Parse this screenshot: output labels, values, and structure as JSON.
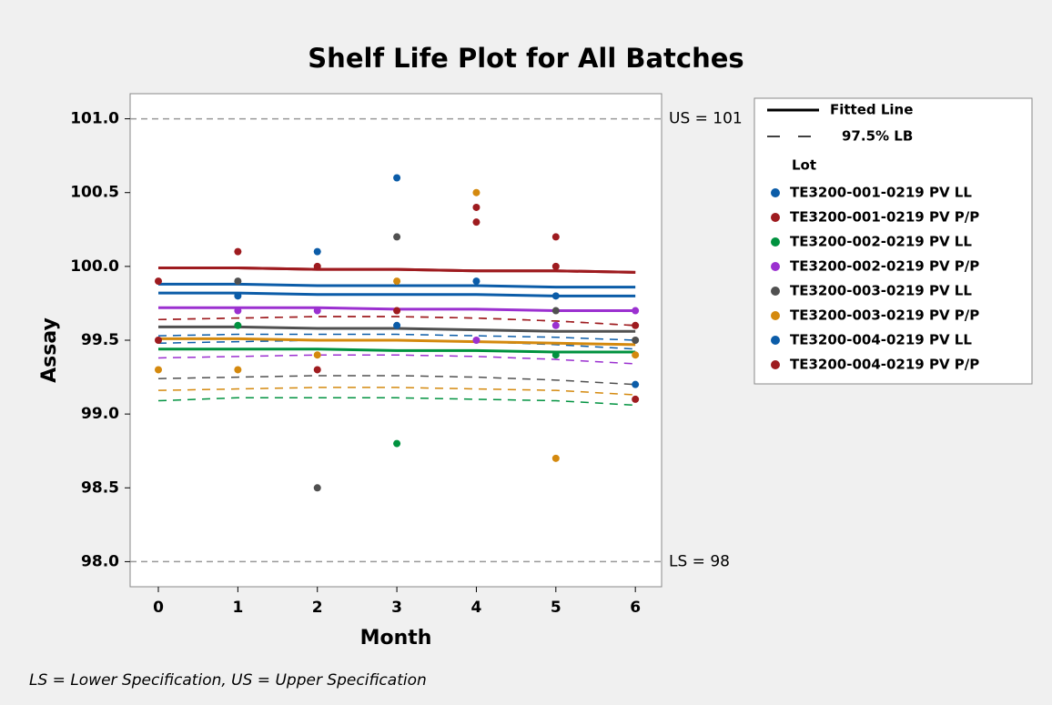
{
  "chart_data": {
    "type": "scatter",
    "title": "Shelf Life Plot for All Batches",
    "x_label": "Month",
    "y_label": "Assay",
    "xlim": [
      -0.355,
      6.33
    ],
    "ylim": [
      97.83,
      101.17
    ],
    "xticks": [
      0,
      1,
      2,
      3,
      4,
      5,
      6
    ],
    "yticks": [
      {
        "value": 98,
        "label": "98.0"
      },
      98.5,
      {
        "value": 99,
        "label": "99.0"
      },
      99.5,
      {
        "value": 100,
        "label": "100.0"
      },
      100.5,
      {
        "value": 101,
        "label": "101.0"
      }
    ],
    "reference_lines": [
      {
        "value": 101,
        "label": "US = 101"
      },
      {
        "value": 98,
        "label": "LS = 98"
      }
    ],
    "legend": {
      "fitted": "Fitted Line",
      "lb": "97.5% LB",
      "group_title": "Lot"
    },
    "footnote": "LS = Lower Specification, US = Upper Specification",
    "series": [
      {
        "name": "TE3200-001-0219 PV LL",
        "color": "#0b5ca8",
        "x": [
          2,
          3,
          4,
          5,
          6
        ],
        "y": [
          100.1,
          100.6,
          99.9,
          99.8,
          99.2
        ],
        "fitted": [
          99.88,
          99.88,
          99.87,
          99.87,
          99.87,
          99.86,
          99.86
        ],
        "lb": [
          99.53,
          99.54,
          99.54,
          99.54,
          99.53,
          99.52,
          99.5
        ]
      },
      {
        "name": "TE3200-001-0219 PV P/P",
        "color": "#9e1b1f",
        "x": [
          0,
          1,
          2,
          4,
          5,
          6
        ],
        "y": [
          99.9,
          100.1,
          100.0,
          100.4,
          100.2,
          99.6
        ],
        "fitted": [
          99.99,
          99.99,
          99.98,
          99.98,
          99.97,
          99.97,
          99.96
        ],
        "lb": [
          99.64,
          99.65,
          99.66,
          99.66,
          99.65,
          99.63,
          99.6
        ]
      },
      {
        "name": "TE3200-002-0219 PV LL",
        "color": "#00923f",
        "x": [
          1,
          3,
          5
        ],
        "y": [
          99.6,
          98.8,
          99.4
        ],
        "fitted": [
          99.44,
          99.44,
          99.44,
          99.43,
          99.43,
          99.42,
          99.42
        ],
        "lb": [
          99.09,
          99.11,
          99.11,
          99.11,
          99.1,
          99.09,
          99.06
        ]
      },
      {
        "name": "TE3200-002-0219 PV P/P",
        "color": "#9b30d0",
        "x": [
          1,
          2,
          4,
          5,
          6
        ],
        "y": [
          99.7,
          99.7,
          99.5,
          99.6,
          99.7
        ],
        "fitted": [
          99.72,
          99.72,
          99.72,
          99.71,
          99.71,
          99.7,
          99.7
        ],
        "lb": [
          99.38,
          99.39,
          99.4,
          99.4,
          99.39,
          99.37,
          99.34
        ]
      },
      {
        "name": "TE3200-003-0219 PV LL",
        "color": "#505050",
        "x": [
          1,
          2,
          3,
          5,
          6
        ],
        "y": [
          99.9,
          98.5,
          100.2,
          99.7,
          99.5
        ],
        "fitted": [
          99.59,
          99.59,
          99.58,
          99.58,
          99.57,
          99.56,
          99.56
        ],
        "lb": [
          99.24,
          99.25,
          99.26,
          99.26,
          99.25,
          99.23,
          99.2
        ]
      },
      {
        "name": "TE3200-003-0219 PV P/P",
        "color": "#d4890e",
        "x": [
          0,
          1,
          2,
          3,
          4,
          5,
          6
        ],
        "y": [
          99.3,
          99.3,
          99.4,
          99.9,
          100.5,
          98.7,
          99.4
        ],
        "fitted": [
          99.51,
          99.51,
          99.5,
          99.5,
          99.49,
          99.48,
          99.47
        ],
        "lb": [
          99.16,
          99.17,
          99.18,
          99.18,
          99.17,
          99.16,
          99.13
        ]
      },
      {
        "name": "TE3200-004-0219 PV LL",
        "color": "#0b5ca8",
        "x": [
          1,
          3
        ],
        "y": [
          99.8,
          99.6
        ],
        "fitted": [
          99.82,
          99.82,
          99.81,
          99.81,
          99.81,
          99.8,
          99.8
        ],
        "lb": [
          99.48,
          99.49,
          99.5,
          99.5,
          99.49,
          99.47,
          99.44
        ]
      },
      {
        "name": "TE3200-004-0219 PV P/P",
        "color": "#9e1b1f",
        "x": [
          0,
          2,
          3,
          4,
          5,
          6
        ],
        "y": [
          99.5,
          99.3,
          99.7,
          100.3,
          100.0,
          99.1
        ],
        "fitted": [
          99.99,
          99.99,
          99.98,
          99.98,
          99.97,
          99.97,
          99.96
        ],
        "lb": [
          99.64,
          99.65,
          99.66,
          99.66,
          99.65,
          99.63,
          99.6
        ]
      }
    ]
  }
}
